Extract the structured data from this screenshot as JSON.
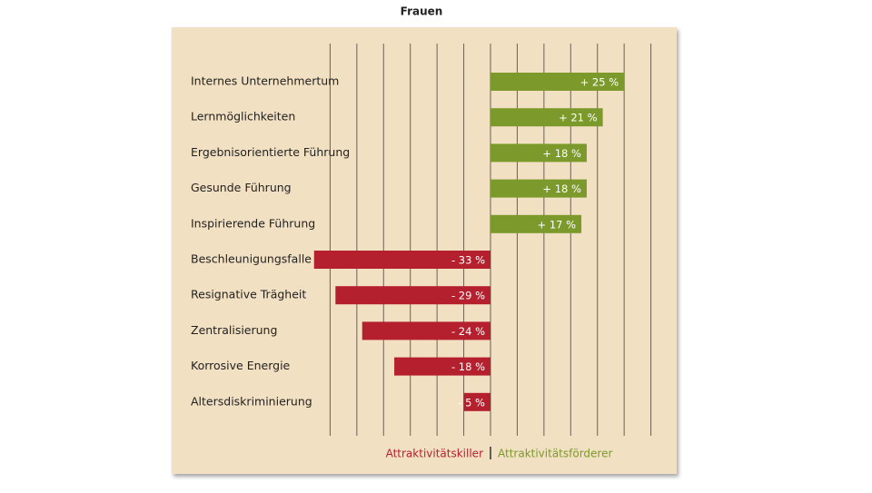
{
  "chart_data": {
    "type": "bar",
    "orientation": "horizontal",
    "title": "Frauen",
    "categories": [
      "Internes Unternehmertum",
      "Lernmöglichkeiten",
      "Ergebnisorientierte Führung",
      "Gesunde Führung",
      "Inspirierende Führung",
      "Beschleunigungsfalle",
      "Resignative Trägheit",
      "Zentralisierung",
      "Korrosive Energie",
      "Altersdiskriminierung"
    ],
    "series": [
      {
        "name": "Attraktivitätskiller",
        "color": "#b5202e",
        "values": [
          null,
          null,
          null,
          null,
          null,
          -33,
          -29,
          -24,
          -18,
          -5
        ],
        "value_labels": [
          null,
          null,
          null,
          null,
          null,
          "- 33 %",
          "- 29 %",
          "- 24 %",
          "- 18 %",
          "- 5 %"
        ]
      },
      {
        "name": "Attraktivitätsförderer",
        "color": "#7c9a2b",
        "values": [
          25,
          21,
          18,
          18,
          17,
          null,
          null,
          null,
          null,
          null
        ],
        "value_labels": [
          "+ 25 %",
          "+ 21 %",
          "+ 18 %",
          "+ 18 %",
          "+ 17 %",
          null,
          null,
          null,
          null,
          null
        ]
      }
    ],
    "xlim": [
      -35,
      35
    ],
    "xticks": [
      -30,
      -25,
      -20,
      -15,
      -10,
      -5,
      0,
      5,
      10,
      15,
      20,
      25,
      30
    ],
    "grid": true
  }
}
